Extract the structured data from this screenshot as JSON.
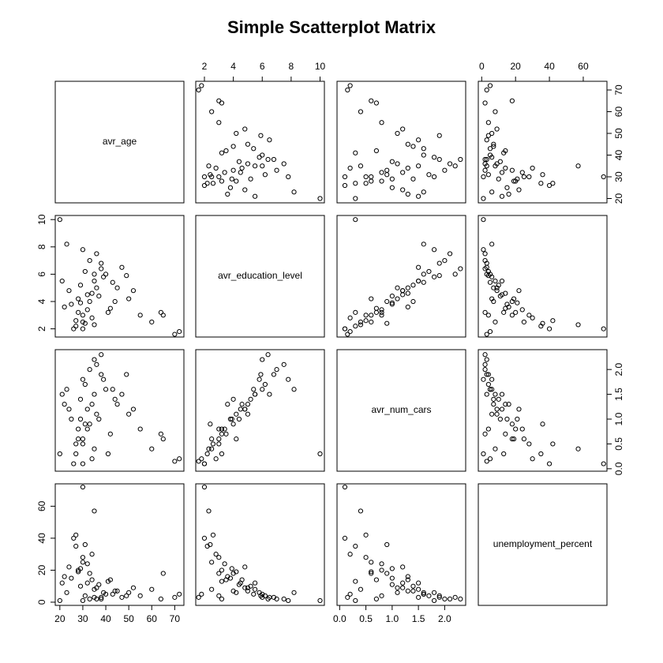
{
  "chart_data": {
    "type": "scatter",
    "title": "Simple Scatterplot Matrix",
    "variables": [
      {
        "name": "avr_age",
        "lim": [
          18,
          74
        ],
        "ticks": [
          20,
          30,
          40,
          50,
          60,
          70
        ],
        "values": [
          32,
          28,
          35,
          40,
          30,
          25,
          45,
          38,
          33,
          27,
          50,
          36,
          29,
          42,
          31,
          34,
          55,
          24,
          39,
          30,
          47,
          26,
          37,
          33,
          60,
          22,
          43,
          31,
          35,
          28,
          52,
          41,
          30,
          36,
          65,
          21,
          44,
          32,
          38,
          27,
          72,
          70,
          20,
          30,
          35,
          64,
          49,
          23,
          34,
          29
        ]
      },
      {
        "name": "avr_education_level",
        "lim": [
          1.4,
          10.3
        ],
        "ticks": [
          2,
          4,
          6,
          8,
          10
        ],
        "values": [
          4.5,
          3.2,
          5.5,
          6.0,
          2.5,
          3.8,
          5.0,
          6.8,
          4.0,
          2.2,
          4.2,
          7.5,
          5.2,
          3.5,
          6.2,
          2.8,
          3.0,
          4.8,
          5.8,
          3.0,
          6.5,
          2.0,
          4.4,
          7.0,
          2.5,
          3.6,
          5.4,
          2.4,
          6.0,
          4.2,
          4.8,
          3.2,
          7.8,
          5.0,
          3.0,
          5.5,
          4.0,
          3.4,
          6.4,
          2.6,
          1.8,
          1.6,
          10,
          2.0,
          2.3,
          3.2,
          5.9,
          8.2,
          4.6,
          3.9
        ]
      },
      {
        "name": "avr_num_cars",
        "lim": [
          -0.05,
          2.4
        ],
        "ticks": [
          {
            "value": 0,
            "label": "0.0"
          },
          0.5,
          {
            "value": 1,
            "label": "1.0"
          },
          1.5,
          {
            "value": 2,
            "label": "2.0"
          }
        ],
        "values": [
          1.2,
          0.8,
          1.5,
          1.6,
          0.6,
          1.0,
          1.3,
          1.9,
          0.9,
          0.3,
          1.1,
          2.1,
          1.4,
          0.7,
          1.7,
          0.2,
          0.8,
          1.2,
          1.8,
          0.5,
          1.5,
          0.1,
          1.0,
          2.0,
          0.4,
          1.3,
          1.6,
          0.9,
          2.2,
          0.6,
          1.2,
          0.3,
          1.8,
          1.1,
          0.6,
          1.5,
          1.4,
          0.8,
          2.3,
          0.5,
          0.2,
          0.15,
          0.3,
          0.1,
          0.4,
          0.7,
          1.9,
          1.6,
          1.3,
          1.0
        ]
      },
      {
        "name": "unemployment_percent",
        "lim": [
          -2,
          74
        ],
        "ticks": [
          0,
          20,
          40,
          60
        ],
        "values": [
          12,
          20,
          8,
          5,
          25,
          15,
          7,
          3,
          18,
          35,
          6,
          2,
          10,
          14,
          4,
          30,
          4,
          22,
          6,
          28,
          3,
          40,
          11,
          2,
          8,
          16,
          5,
          36,
          3,
          19,
          9,
          13,
          1,
          9,
          18,
          12,
          7,
          24,
          2,
          42,
          5,
          3,
          1,
          72,
          57,
          2,
          4,
          6,
          14,
          21
        ]
      }
    ]
  }
}
